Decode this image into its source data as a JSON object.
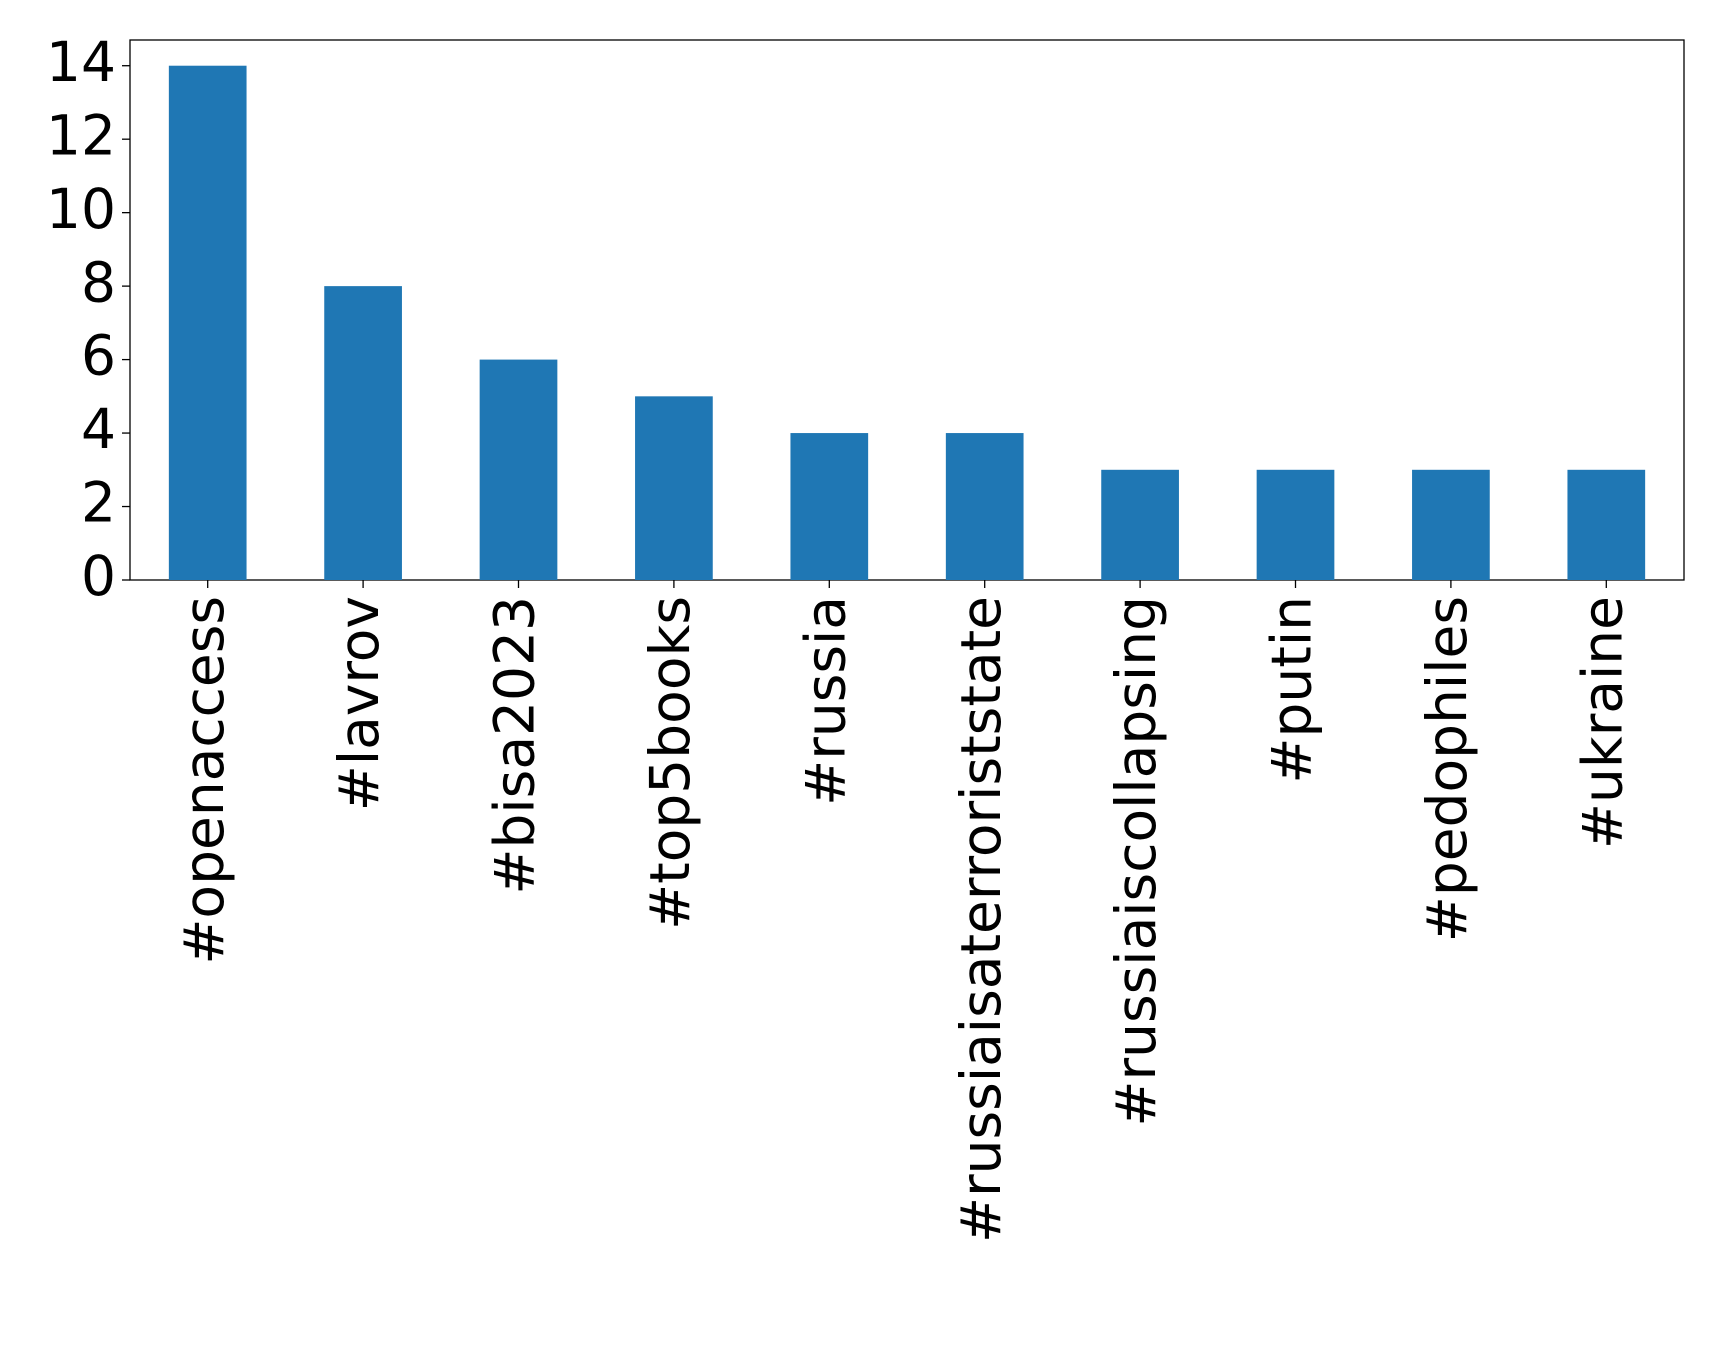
{
  "chart_data": {
    "type": "bar",
    "categories": [
      "#openaccess",
      "#lavrov",
      "#bisa2023",
      "#top5books",
      "#russia",
      "#russiaisaterroriststate",
      "#russiaiscollapsing",
      "#putin",
      "#pedophiles",
      "#ukraine"
    ],
    "values": [
      14,
      8,
      6,
      5,
      4,
      4,
      3,
      3,
      3,
      3
    ],
    "color": "#1f77b4",
    "ylim": [
      0,
      14.7
    ],
    "yticks": [
      0,
      2,
      4,
      6,
      8,
      10,
      12,
      14
    ],
    "grid": false
  }
}
